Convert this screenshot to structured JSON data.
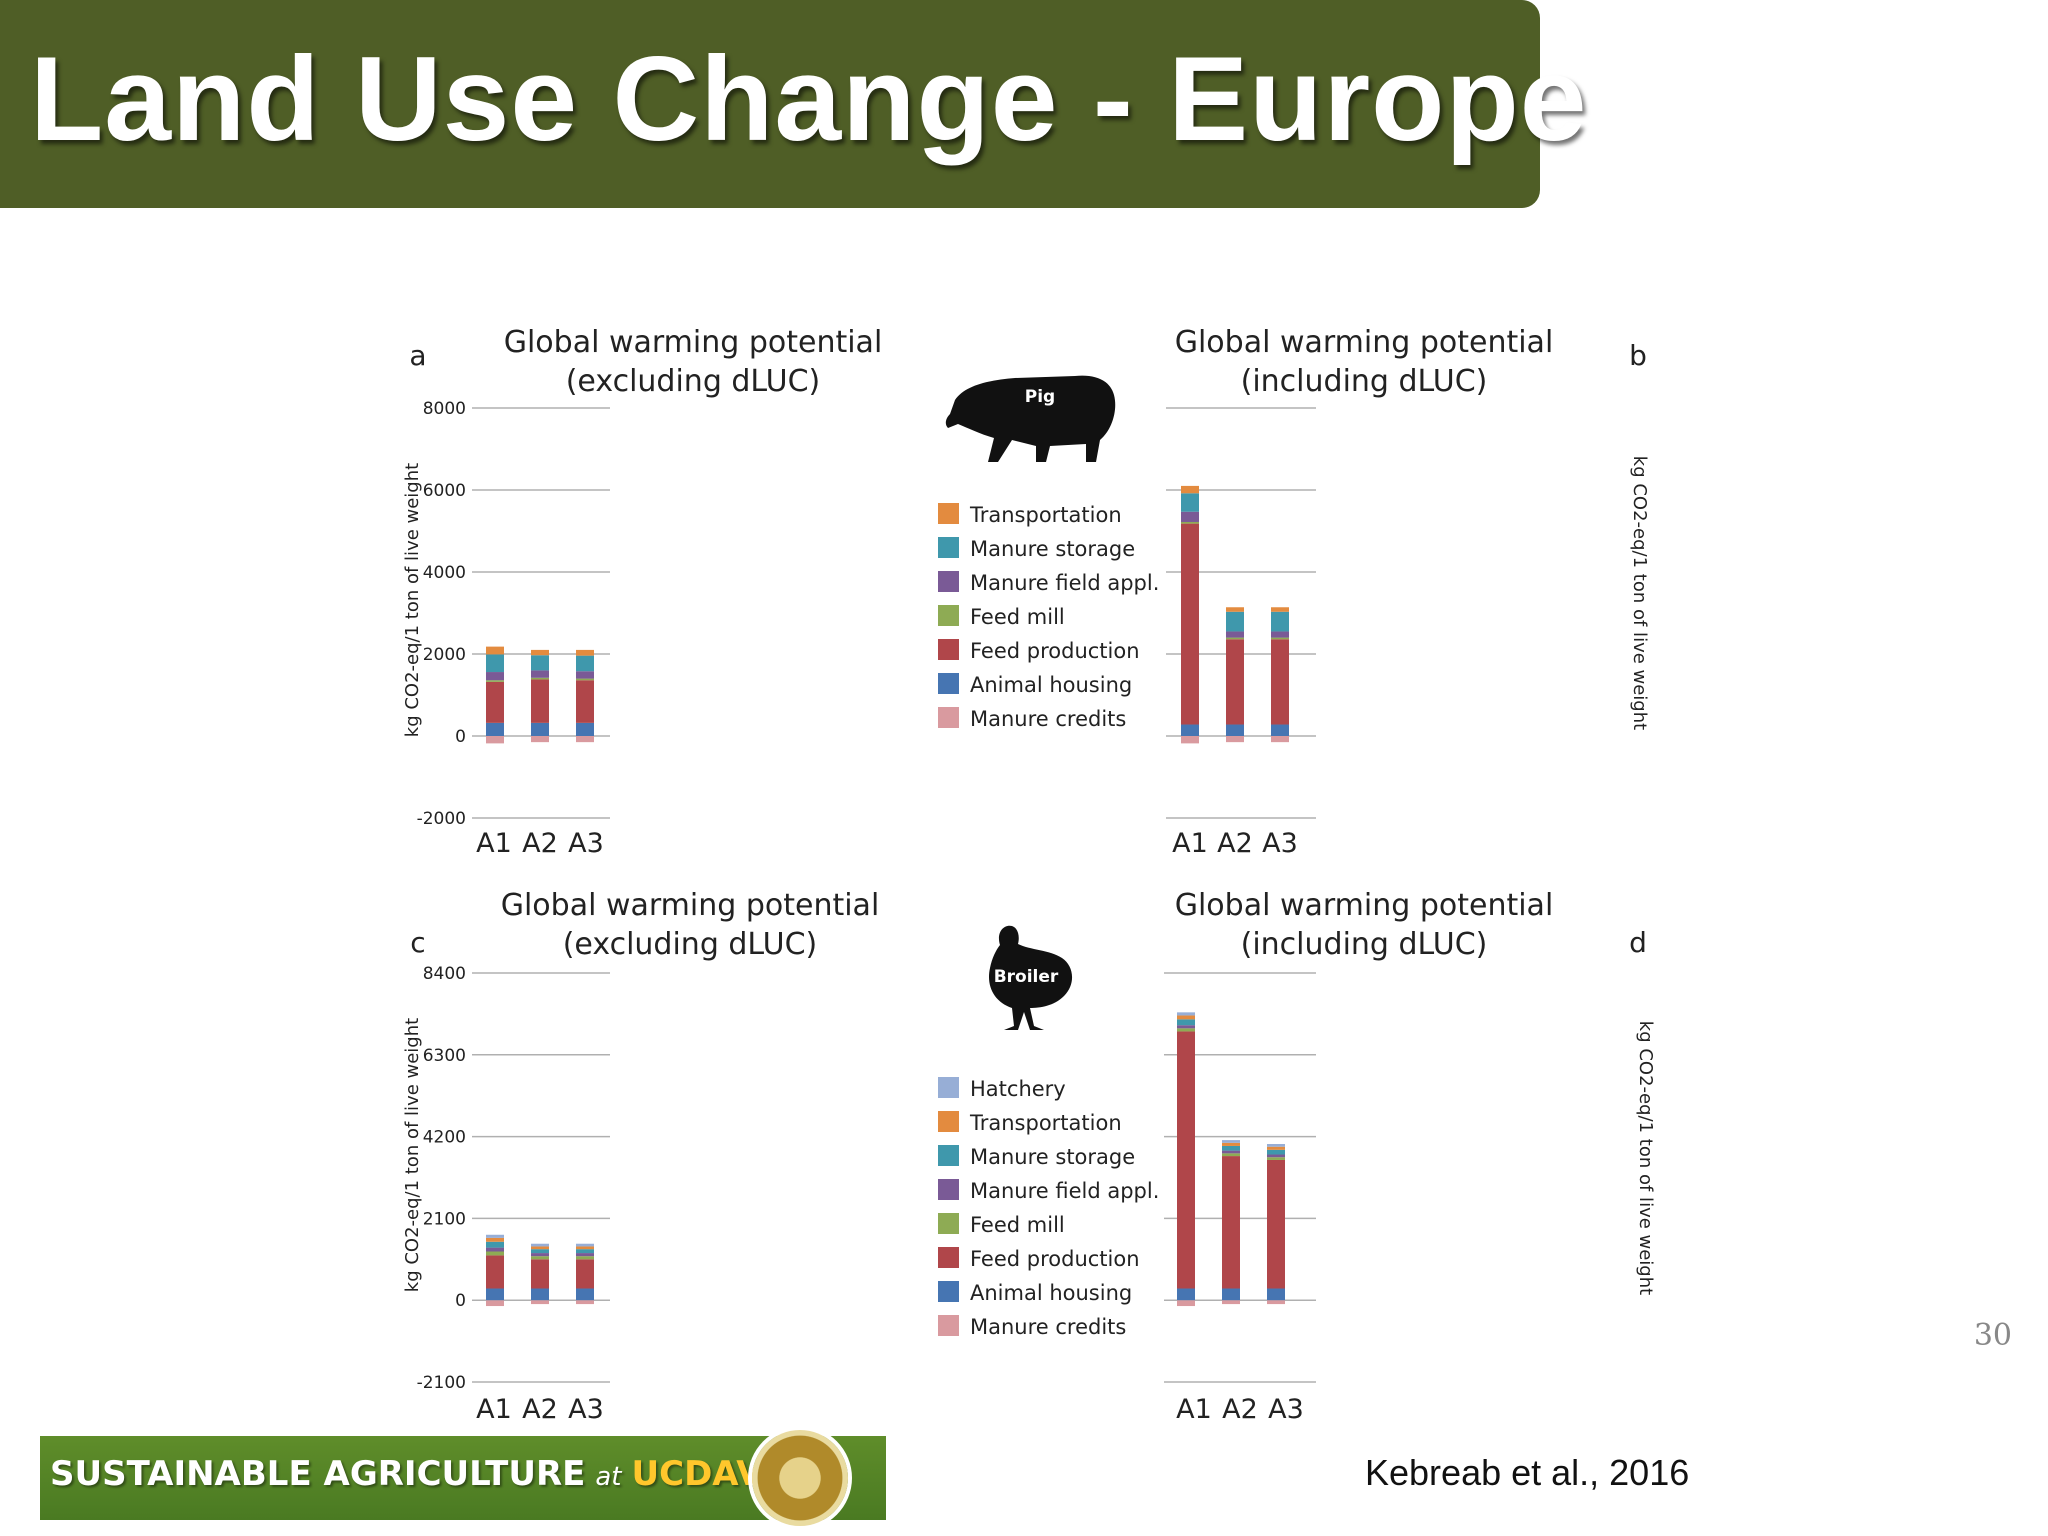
{
  "title": "Land Use Change - Europe",
  "slide_number": "30",
  "citation": "Kebreab et al., 2016",
  "footer": {
    "part1": "SUSTAINABLE  AGRICULTURE",
    "at": "at",
    "uc": "UCDAVIS",
    "seal_icon": "uc-davis-seal-icon"
  },
  "colors": {
    "Hatchery": "#97aed6",
    "Transportation": "#e38b3f",
    "Manure storage": "#3f98ac",
    "Manure field appl.": "#7a5a96",
    "Feed mill": "#8eab54",
    "Feed production": "#b0464a",
    "Animal housing": "#4675b2",
    "Manure credits": "#d99a9f"
  },
  "animals": {
    "pig": {
      "icon": "pig-icon",
      "label": "Pig"
    },
    "broiler": {
      "icon": "broiler-icon",
      "label": "Broiler"
    }
  },
  "legends": {
    "pig": [
      "Transportation",
      "Manure storage",
      "Manure field appl.",
      "Feed mill",
      "Feed production",
      "Animal housing",
      "Manure credits"
    ],
    "broiler": [
      "Hatchery",
      "Transportation",
      "Manure storage",
      "Manure field appl.",
      "Feed mill",
      "Feed production",
      "Animal housing",
      "Manure credits"
    ]
  },
  "chart_data": [
    {
      "type": "bar",
      "stacked": true,
      "panel": "a",
      "title": "Global warming potential (excluding dLUC)",
      "ylabel": "kg CO2-eq/1 ton of live weight",
      "categories": [
        "A1",
        "A2",
        "A3"
      ],
      "yticks": [
        -2000,
        0,
        2000,
        4000,
        6000,
        8000
      ],
      "ylim": [
        -2000,
        8000
      ],
      "series": [
        {
          "name": "Manure credits",
          "values": [
            -180,
            -150,
            -150
          ]
        },
        {
          "name": "Animal housing",
          "values": [
            320,
            320,
            320
          ]
        },
        {
          "name": "Feed production",
          "values": [
            1000,
            1060,
            1040
          ]
        },
        {
          "name": "Feed mill",
          "values": [
            40,
            40,
            40
          ]
        },
        {
          "name": "Manure field appl.",
          "values": [
            200,
            180,
            180
          ]
        },
        {
          "name": "Manure storage",
          "values": [
            430,
            370,
            380
          ]
        },
        {
          "name": "Transportation",
          "values": [
            190,
            130,
            140
          ]
        }
      ]
    },
    {
      "type": "bar",
      "stacked": true,
      "panel": "b",
      "title": "Global warming potential (including dLUC)",
      "ylabel": "kg CO2-eq/1 ton of live weight",
      "categories": [
        "A1",
        "A2",
        "A3"
      ],
      "yticks": [
        -2000,
        0,
        2000,
        4000,
        6000,
        8000
      ],
      "ylim": [
        -2000,
        8000
      ],
      "series": [
        {
          "name": "Manure credits",
          "values": [
            -180,
            -150,
            -150
          ]
        },
        {
          "name": "Animal housing",
          "values": [
            280,
            280,
            280
          ]
        },
        {
          "name": "Feed production",
          "values": [
            4900,
            2080,
            2080
          ]
        },
        {
          "name": "Feed mill",
          "values": [
            40,
            40,
            40
          ]
        },
        {
          "name": "Manure field appl.",
          "values": [
            250,
            150,
            150
          ]
        },
        {
          "name": "Manure storage",
          "values": [
            450,
            480,
            480
          ]
        },
        {
          "name": "Transportation",
          "values": [
            180,
            110,
            110
          ]
        }
      ]
    },
    {
      "type": "bar",
      "stacked": true,
      "panel": "c",
      "title": "Global warming potential (excluding dLUC)",
      "ylabel": "kg CO2-eq/1 ton of live weight",
      "categories": [
        "A1",
        "A2",
        "A3"
      ],
      "yticks": [
        -2100,
        0,
        2100,
        4200,
        6300,
        8400
      ],
      "ylim": [
        -2100,
        8400
      ],
      "series": [
        {
          "name": "Manure credits",
          "values": [
            -150,
            -100,
            -100
          ]
        },
        {
          "name": "Animal housing",
          "values": [
            300,
            300,
            300
          ]
        },
        {
          "name": "Feed production",
          "values": [
            850,
            750,
            750
          ]
        },
        {
          "name": "Feed mill",
          "values": [
            100,
            80,
            80
          ]
        },
        {
          "name": "Manure field appl.",
          "values": [
            100,
            80,
            80
          ]
        },
        {
          "name": "Manure storage",
          "values": [
            150,
            100,
            100
          ]
        },
        {
          "name": "Transportation",
          "values": [
            100,
            70,
            70
          ]
        },
        {
          "name": "Hatchery",
          "values": [
            80,
            70,
            70
          ]
        }
      ]
    },
    {
      "type": "bar",
      "stacked": true,
      "panel": "d",
      "title": "Global warming potential (including dLUC)",
      "ylabel": "kg CO2-eq/1 ton of live weight",
      "categories": [
        "A1",
        "A2",
        "A3"
      ],
      "yticks": [
        -2100,
        0,
        2100,
        4200,
        6300,
        8400
      ],
      "ylim": [
        -2100,
        8400
      ],
      "series": [
        {
          "name": "Manure credits",
          "values": [
            -150,
            -100,
            -100
          ]
        },
        {
          "name": "Animal housing",
          "values": [
            300,
            300,
            300
          ]
        },
        {
          "name": "Feed production",
          "values": [
            6600,
            3400,
            3300
          ]
        },
        {
          "name": "Feed mill",
          "values": [
            80,
            70,
            70
          ]
        },
        {
          "name": "Manure field appl.",
          "values": [
            80,
            70,
            70
          ]
        },
        {
          "name": "Manure storage",
          "values": [
            150,
            120,
            120
          ]
        },
        {
          "name": "Transportation",
          "values": [
            100,
            80,
            80
          ]
        },
        {
          "name": "Hatchery",
          "values": [
            80,
            70,
            70
          ]
        }
      ]
    }
  ]
}
